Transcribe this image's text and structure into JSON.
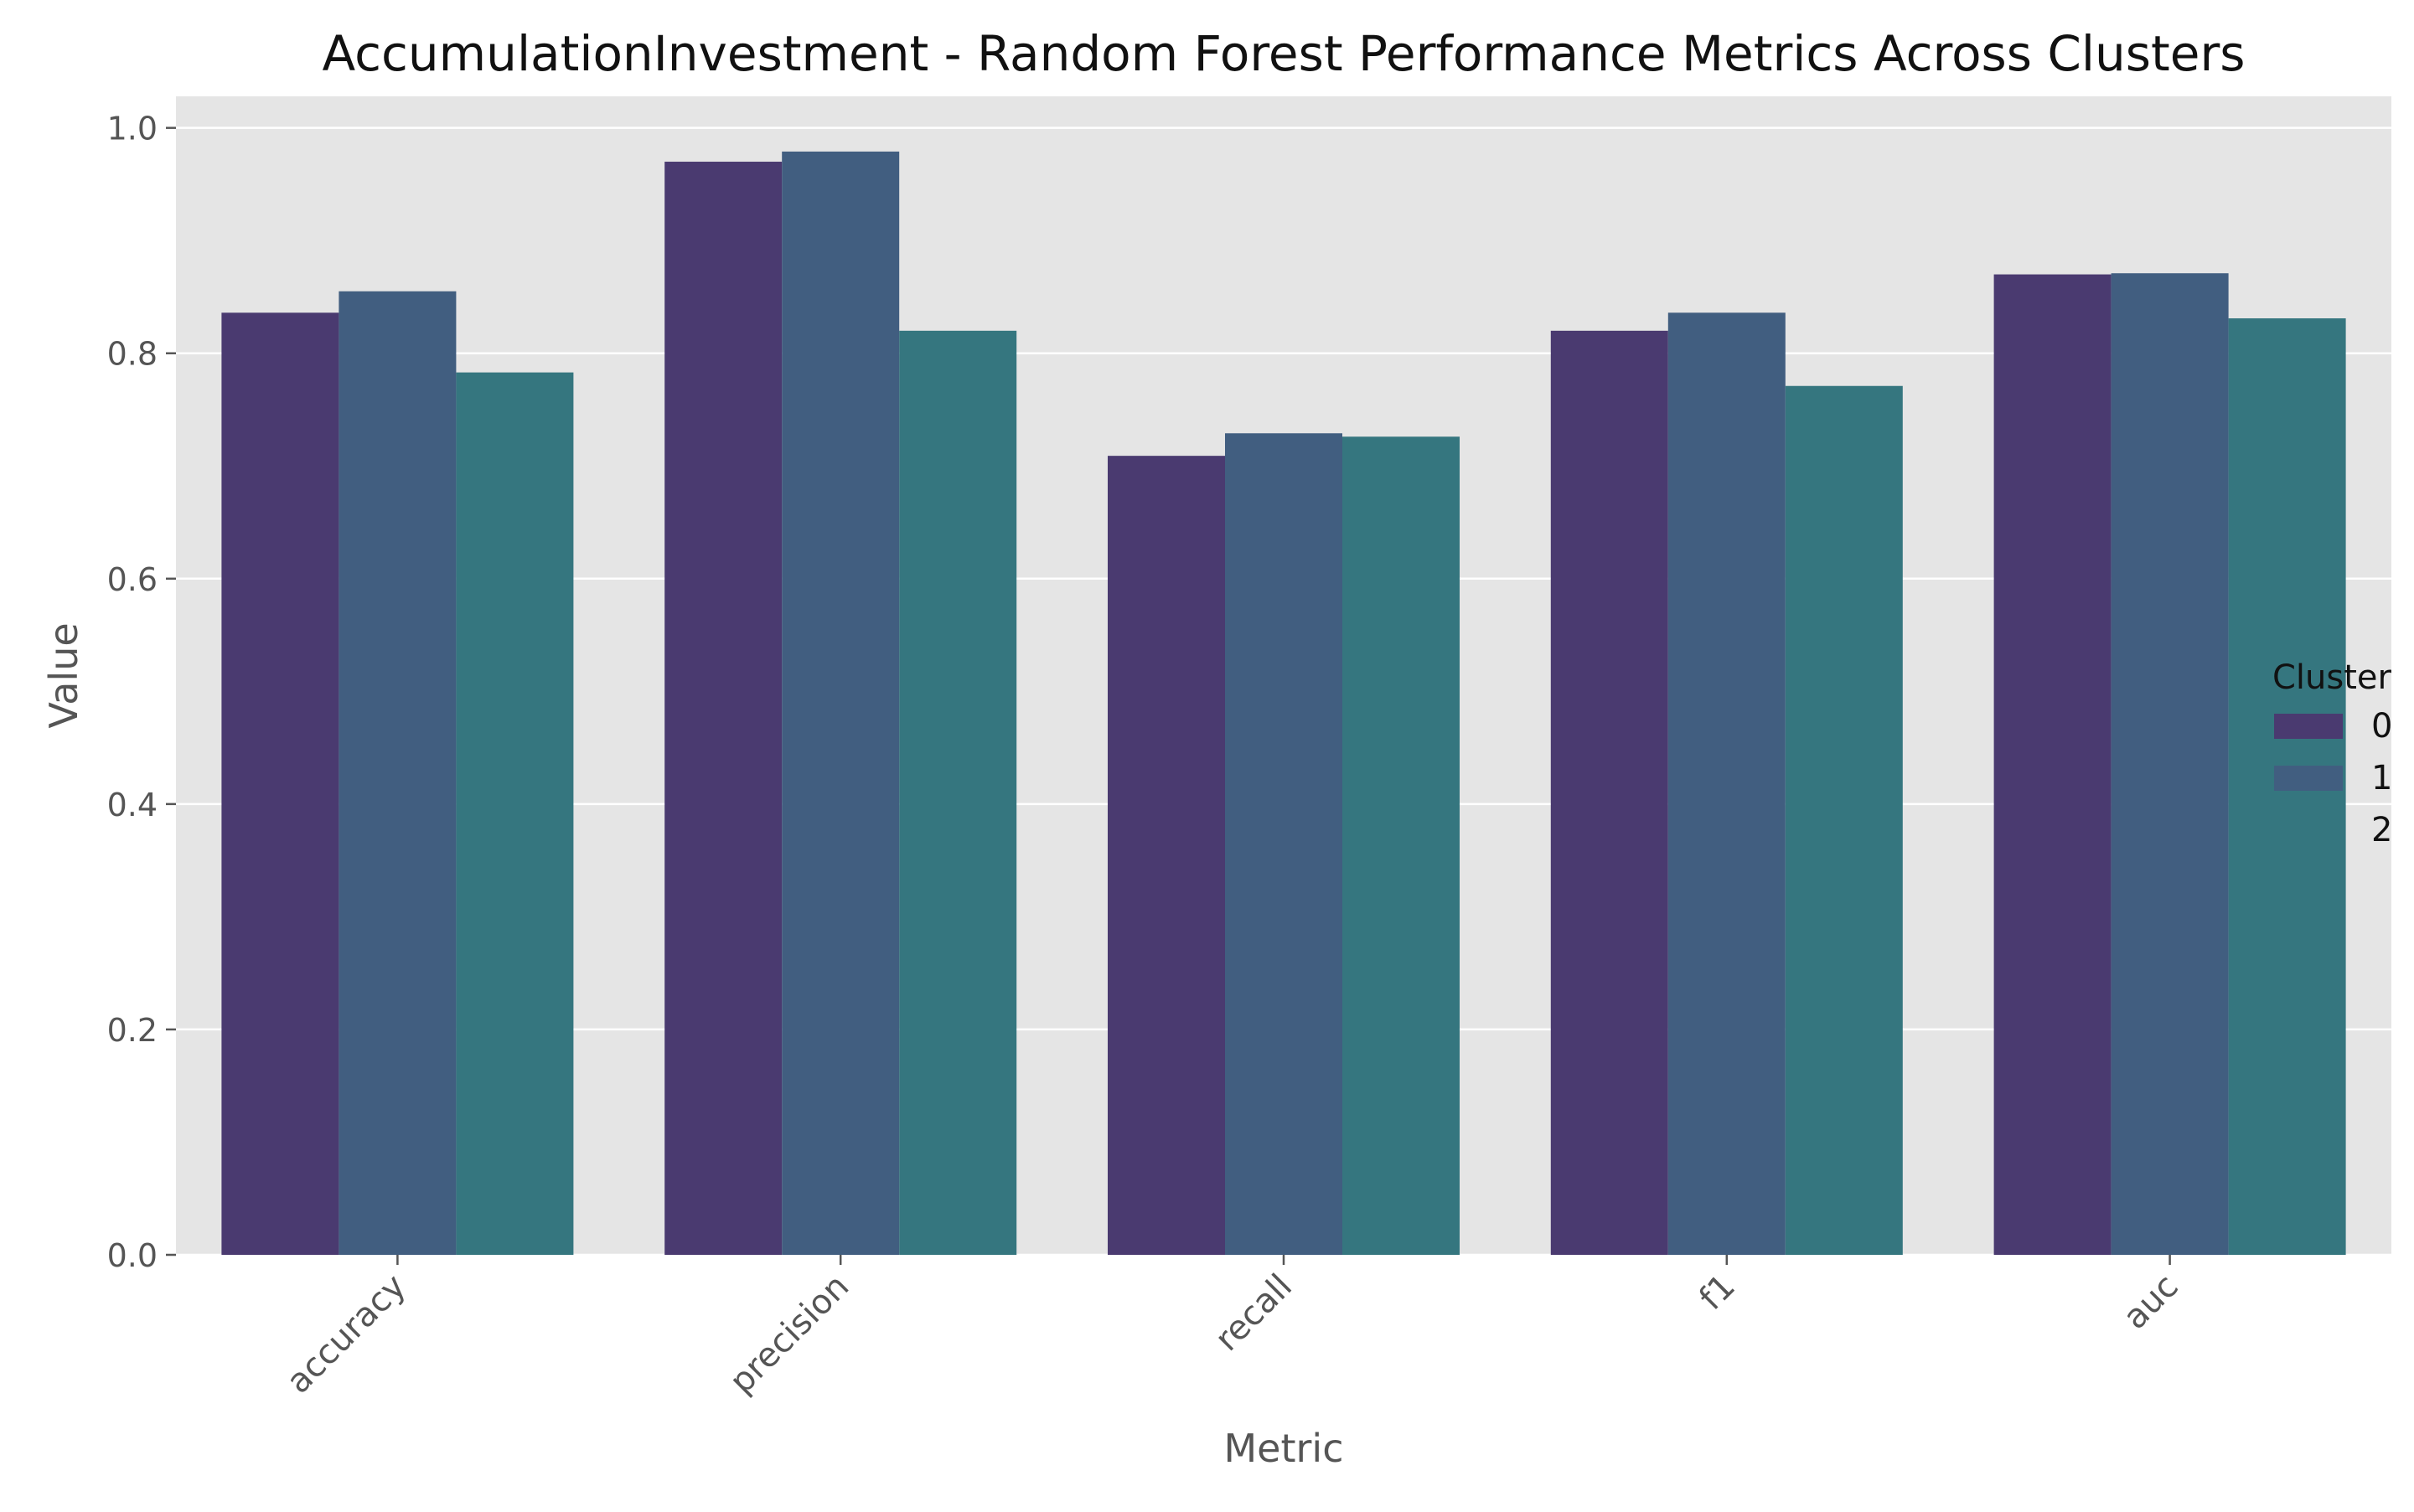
{
  "chart_data": {
    "type": "bar",
    "title": "AccumulationInvestment - Random Forest Performance Metrics Across Clusters",
    "xlabel": "Metric",
    "ylabel": "Value",
    "categories": [
      "accuracy",
      "precision",
      "recall",
      "f1",
      "auc"
    ],
    "ylim": [
      0,
      1.028
    ],
    "yticks": [
      0.0,
      0.2,
      0.4,
      0.6,
      0.8,
      1.0
    ],
    "ytick_labels": [
      "0.0",
      "0.2",
      "0.4",
      "0.6",
      "0.8",
      "1.0"
    ],
    "grid": true,
    "legend": {
      "title": "Cluster",
      "placement": "right"
    },
    "series": [
      {
        "name": "0",
        "color": "#4a3a70",
        "values": [
          0.836,
          0.97,
          0.709,
          0.82,
          0.87
        ]
      },
      {
        "name": "1",
        "color": "#415e80",
        "values": [
          0.855,
          0.979,
          0.729,
          0.836,
          0.871
        ]
      },
      {
        "name": "2",
        "color": "#35767f",
        "values": [
          0.783,
          0.82,
          0.726,
          0.771,
          0.831
        ]
      }
    ],
    "colors": {
      "plot_background": "#e5e5e5",
      "grid": "#ffffff",
      "text": "#555555"
    }
  }
}
